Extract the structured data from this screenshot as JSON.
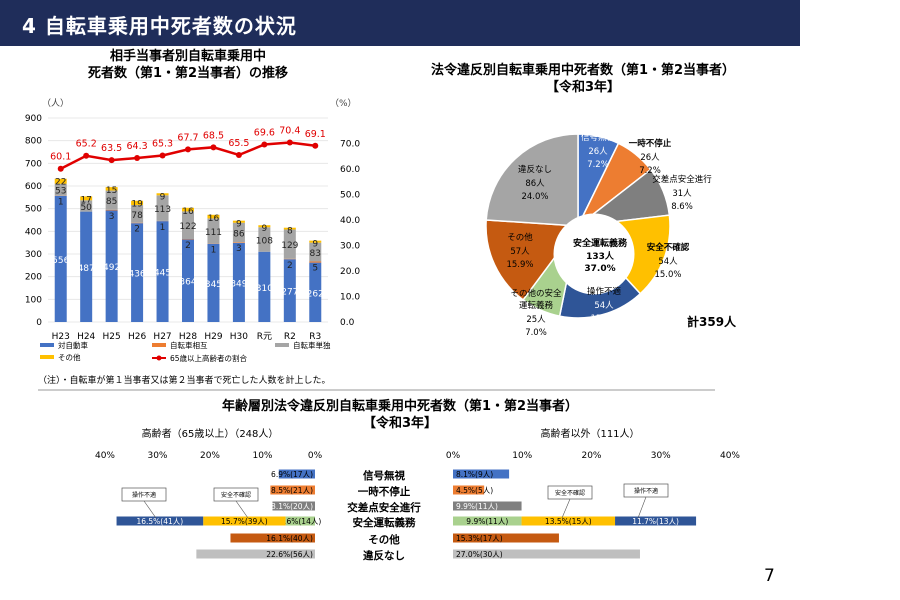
{
  "header": {
    "title": "4 自転車乗用中死者数の状況"
  },
  "page_number": "7",
  "colors": {
    "header_bg": "#1f2d5a",
    "blue": "#4472c4",
    "orange": "#ed7d31",
    "gray": "#a5a5a5",
    "yellow": "#ffc000",
    "red": "#e00000",
    "navy": "#1f3864",
    "brown": "#c55a11",
    "green": "#a9d18e",
    "dark_gray": "#7f7f7f",
    "light_gray": "#bfbfbf"
  },
  "chart_data": [
    {
      "type": "bar",
      "stacked": true,
      "title": "相手当事者別自転車乗用中\n死者数（第1・第2当事者）の推移",
      "title_lines": [
        "相手当事者別自転車乗用中",
        "死者数（第1・第2当事者）の推移"
      ],
      "left_unit": "（人）",
      "right_unit": "（%）",
      "categories": [
        "H23",
        "H24",
        "H25",
        "H26",
        "H27",
        "H28",
        "H29",
        "H30",
        "R元",
        "R2",
        "R3"
      ],
      "ylim": [
        0,
        900
      ],
      "y_ticks": [
        "0",
        "100",
        "200",
        "300",
        "400",
        "500",
        "600",
        "700",
        "800",
        "900"
      ],
      "y2lim": [
        0,
        80
      ],
      "y2_ticks": [
        "0.0",
        "10.0",
        "20.0",
        "30.0",
        "40.0",
        "50.0",
        "60.0",
        "70.0"
      ],
      "series": [
        {
          "name": "対自動車",
          "color": "#4472c4",
          "values": [
            556,
            487,
            492,
            436,
            445,
            364,
            345,
            349,
            310,
            277,
            262
          ],
          "labels": [
            "556",
            "487",
            "492",
            "436",
            "445",
            "364",
            "345",
            "349",
            "310",
            "277",
            "262"
          ]
        },
        {
          "name": "自転車相互",
          "color": "#ed7d31",
          "values": [
            1,
            0,
            3,
            2,
            1,
            2,
            1,
            3,
            0,
            2,
            5
          ],
          "labels": [
            "1",
            "",
            "3",
            "2",
            "1",
            "2",
            "1",
            "3",
            "",
            "2",
            "5"
          ]
        },
        {
          "name": "自転車単独",
          "color": "#a5a5a5",
          "values": [
            53,
            50,
            85,
            78,
            113,
            122,
            111,
            86,
            108,
            129,
            83
          ],
          "labels": [
            "53",
            "50",
            "85",
            "78",
            "113",
            "122",
            "111",
            "86",
            "108",
            "129",
            "83"
          ]
        },
        {
          "name": "その他",
          "color": "#ffc000",
          "values": [
            22,
            17,
            15,
            19,
            9,
            16,
            16,
            9,
            9,
            8,
            9
          ],
          "labels": [
            "22",
            "17",
            "15",
            "19",
            "9",
            "16",
            "16",
            "9",
            "9",
            "8",
            "9"
          ]
        }
      ],
      "line": {
        "name": "65歳以上高齢者の割合",
        "color": "#e00000",
        "values": [
          60.1,
          65.2,
          63.5,
          64.3,
          65.3,
          67.7,
          68.5,
          65.5,
          69.6,
          70.4,
          69.1
        ],
        "labels": [
          "60.1",
          "65.2",
          "63.5",
          "64.3",
          "65.3",
          "67.7",
          "68.5",
          "65.5",
          "69.6",
          "70.4",
          "69.1"
        ]
      },
      "note": "（注）・自転車が第１当事者又は第２当事者で死亡した人数を計上した。"
    },
    {
      "type": "pie",
      "title_lines": [
        "法令違反別自転車乗用中死者数（第1・第2当事者）",
        "【令和3年】"
      ],
      "total_label": "計359人",
      "slices": [
        {
          "name": "信号無視",
          "value": 26,
          "count": "26人",
          "pct": "7.2%",
          "color": "#4472c4"
        },
        {
          "name": "一時不停止",
          "value": 26,
          "count": "26人",
          "pct": "7.2%",
          "color": "#ed7d31"
        },
        {
          "name": "交差点安全進行",
          "value": 31,
          "count": "31人",
          "pct": "8.6%",
          "color": "#7f7f7f"
        },
        {
          "name": "安全不確認",
          "value": 54,
          "count": "54人",
          "pct": "15.0%",
          "color": "#ffc000"
        },
        {
          "name": "操作不適",
          "value": 54,
          "count": "54人",
          "pct": "15.0%",
          "color": "#2f5597"
        },
        {
          "name": "その他の安全運転義務",
          "value": 25,
          "count": "25人",
          "pct": "7.0%",
          "color": "#a9d18e"
        },
        {
          "name": "その他",
          "value": 57,
          "count": "57人",
          "pct": "15.9%",
          "color": "#c55a11"
        },
        {
          "name": "違反なし",
          "value": 86,
          "count": "86人",
          "pct": "24.0%",
          "color": "#a5a5a5"
        }
      ],
      "center": {
        "name": "安全運転義務",
        "count": "133人",
        "pct": "37.0%"
      }
    },
    {
      "type": "bar",
      "orientation": "horizontal",
      "title_lines": [
        "年齢層別法令違反別自転車乗用中死者数（第1・第2当事者）",
        "【令和3年】"
      ],
      "left_group": "高齢者（65歳以上）（248人）",
      "right_group": "高齢者以外（111人）",
      "left_axis_ticks": [
        "40%",
        "30%",
        "20%",
        "10%",
        "0%"
      ],
      "right_axis_ticks": [
        "0%",
        "10%",
        "20%",
        "30%",
        "40%"
      ],
      "xlim": [
        0,
        40
      ],
      "categories": [
        "信号無視",
        "一時不停止",
        "交差点安全進行",
        "安全運転義務",
        "その他",
        "違反なし"
      ],
      "elderly": [
        {
          "category": "信号無視",
          "segments": [
            {
              "value": 6.9,
              "label": "6.9%(17人)",
              "color": "#4472c4"
            }
          ]
        },
        {
          "category": "一時不停止",
          "segments": [
            {
              "value": 8.5,
              "label": "8.5%(21人)",
              "color": "#ed7d31"
            }
          ]
        },
        {
          "category": "交差点安全進行",
          "segments": [
            {
              "value": 8.1,
              "label": "8.1%(20人)",
              "color": "#7f7f7f"
            }
          ]
        },
        {
          "category": "安全運転義務",
          "segments": [
            {
              "value": 5.6,
              "label": "5.6%(14人)",
              "color": "#a9d18e",
              "name": ""
            },
            {
              "value": 15.7,
              "label": "15.7%(39人)",
              "color": "#ffc000",
              "name": "安全不確認"
            },
            {
              "value": 16.5,
              "label": "16.5%(41人)",
              "color": "#2f5597",
              "name": "操作不適"
            }
          ]
        },
        {
          "category": "その他",
          "segments": [
            {
              "value": 16.1,
              "label": "16.1%(40人)",
              "color": "#c55a11"
            }
          ]
        },
        {
          "category": "違反なし",
          "segments": [
            {
              "value": 22.6,
              "label": "22.6%(56人)",
              "color": "#bfbfbf"
            }
          ]
        }
      ],
      "others": [
        {
          "category": "信号無視",
          "segments": [
            {
              "value": 8.1,
              "label": "8.1%(9人)",
              "color": "#4472c4"
            }
          ]
        },
        {
          "category": "一時不停止",
          "segments": [
            {
              "value": 4.5,
              "label": "4.5%(5人)",
              "color": "#ed7d31"
            }
          ]
        },
        {
          "category": "交差点安全進行",
          "segments": [
            {
              "value": 9.9,
              "label": "9.9%(11人)",
              "color": "#7f7f7f"
            }
          ]
        },
        {
          "category": "安全運転義務",
          "segments": [
            {
              "value": 9.9,
              "label": "9.9%(11人)",
              "color": "#a9d18e",
              "name": ""
            },
            {
              "value": 13.5,
              "label": "13.5%(15人)",
              "color": "#ffc000",
              "name": "安全不確認"
            },
            {
              "value": 11.7,
              "label": "11.7%(13人)",
              "color": "#2f5597",
              "name": "操作不適"
            }
          ]
        },
        {
          "category": "その他",
          "segments": [
            {
              "value": 15.3,
              "label": "15.3%(17人)",
              "color": "#c55a11"
            }
          ]
        },
        {
          "category": "違反なし",
          "segments": [
            {
              "value": 27.0,
              "label": "27.0%(30人)",
              "color": "#bfbfbf"
            }
          ]
        }
      ],
      "callouts_left": [
        "操作不適",
        "安全不確認"
      ],
      "callouts_right": [
        "安全不確認",
        "操作不適"
      ]
    }
  ]
}
